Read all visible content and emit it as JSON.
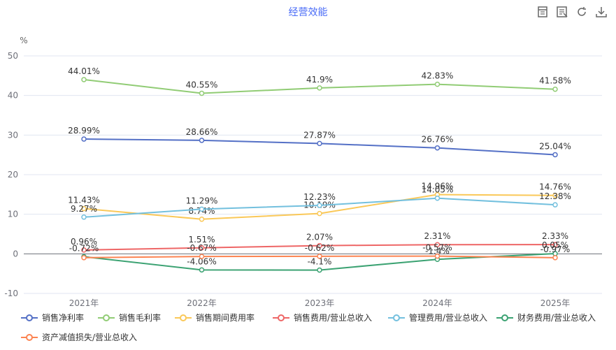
{
  "chart_data": {
    "type": "line",
    "title": "经营效能",
    "ylabel": "%",
    "ylim": [
      -10,
      50
    ],
    "yticks": [
      "-10",
      "0",
      "10",
      "20",
      "30",
      "40",
      "50"
    ],
    "categories": [
      "2021年",
      "2022年",
      "2023年",
      "2024年",
      "2025年"
    ],
    "grid": true,
    "legend_position": "bottom",
    "series": [
      {
        "name": "销售净利率",
        "color": "#5470c6",
        "values": [
          28.99,
          28.66,
          27.87,
          26.76,
          25.04
        ],
        "labels": [
          "28.99%",
          "28.66%",
          "27.87%",
          "26.76%",
          "25.04%"
        ]
      },
      {
        "name": "销售毛利率",
        "color": "#91cc75",
        "values": [
          44.01,
          40.55,
          41.9,
          42.83,
          41.58
        ],
        "labels": [
          "44.01%",
          "40.55%",
          "41.9%",
          "42.83%",
          "41.58%"
        ]
      },
      {
        "name": "销售期间费用率",
        "color": "#fac858",
        "values": [
          11.43,
          8.74,
          10.19,
          14.96,
          14.76
        ],
        "labels": [
          "11.43%",
          "8.74%",
          "10.19%",
          "14.96%",
          "14.76%"
        ]
      },
      {
        "name": "销售费用/营业总收入",
        "color": "#ee6666",
        "values": [
          0.96,
          1.51,
          2.07,
          2.31,
          2.33
        ],
        "labels": [
          "0.96%",
          "1.51%",
          "2.07%",
          "2.31%",
          "2.33%"
        ]
      },
      {
        "name": "管理费用/营业总收入",
        "color": "#73c0de",
        "values": [
          9.27,
          11.29,
          12.23,
          14.05,
          12.38
        ],
        "labels": [
          "9.27%",
          "11.29%",
          "12.23%",
          "14.05%",
          "12.38%"
        ]
      },
      {
        "name": "财务费用/营业总收入",
        "color": "#3ba272",
        "values": [
          -0.72,
          -4.06,
          -4.1,
          -1.4,
          0.05
        ],
        "labels": [
          "-0.72%",
          "-4.06%",
          "-4.1%",
          "-1.4%",
          "0.05%"
        ]
      },
      {
        "name": "资产减值损失/营业总收入",
        "color": "#fc8452",
        "values": [
          -0.97,
          -0.67,
          -0.62,
          -0.57,
          -0.97
        ],
        "labels": [
          "",
          "-0.67%",
          "-0.62%",
          "-0.57%",
          "-0.97%"
        ]
      }
    ]
  }
}
